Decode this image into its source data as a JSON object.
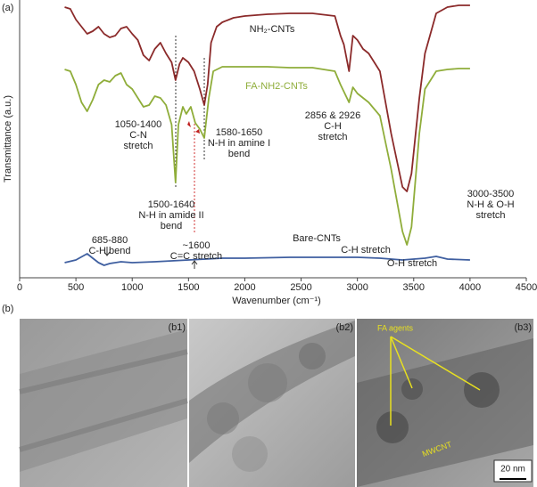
{
  "chart_data": {
    "type": "line",
    "panel_labels": [
      "(a)",
      "(b)"
    ],
    "xlabel": "Wavenumber (cm⁻¹)",
    "ylabel": "Transmittance (a.u.)",
    "xlim": [
      0,
      4500
    ],
    "xticks": [
      0,
      500,
      1000,
      1500,
      2000,
      2500,
      3000,
      3500,
      4000,
      4500
    ],
    "ylim": [
      0,
      312
    ],
    "series": [
      {
        "name": "NH₂-CNTs",
        "color": "#8b2a2a",
        "x": [
          400,
          450,
          500,
          550,
          600,
          650,
          700,
          750,
          800,
          850,
          900,
          950,
          1000,
          1050,
          1100,
          1150,
          1200,
          1250,
          1300,
          1350,
          1385,
          1420,
          1450,
          1500,
          1550,
          1600,
          1640,
          1670,
          1700,
          1750,
          1800,
          1900,
          2000,
          2200,
          2400,
          2600,
          2800,
          2850,
          2880,
          2926,
          2960,
          3000,
          3050,
          3100,
          3200,
          3300,
          3400,
          3440,
          3480,
          3550,
          3600,
          3700,
          3800,
          3900,
          4000
        ],
        "values": [
          304,
          302,
          290,
          282,
          274,
          277,
          282,
          274,
          270,
          272,
          280,
          282,
          274,
          267,
          250,
          244,
          257,
          264,
          252,
          242,
          222,
          240,
          247,
          242,
          232,
          212,
          194,
          217,
          264,
          282,
          287,
          292,
          294,
          296,
          297,
          297,
          294,
          272,
          262,
          232,
          272,
          267,
          257,
          252,
          232,
          162,
          102,
          97,
          117,
          202,
          252,
          297,
          304,
          306,
          306
        ]
      },
      {
        "name": "FA-NH2-CNTs",
        "color": "#8fad3a",
        "x": [
          400,
          450,
          500,
          550,
          600,
          650,
          700,
          750,
          800,
          850,
          900,
          950,
          1000,
          1050,
          1100,
          1150,
          1200,
          1250,
          1300,
          1350,
          1385,
          1410,
          1450,
          1480,
          1520,
          1560,
          1600,
          1640,
          1680,
          1720,
          1800,
          2000,
          2200,
          2400,
          2600,
          2800,
          2850,
          2926,
          2960,
          3000,
          3100,
          3200,
          3300,
          3400,
          3440,
          3480,
          3550,
          3600,
          3700,
          3800,
          3900,
          4000
        ],
        "values": [
          234,
          232,
          217,
          197,
          187,
          200,
          217,
          222,
          220,
          227,
          230,
          217,
          212,
          202,
          192,
          194,
          204,
          202,
          194,
          172,
          107,
          172,
          192,
          184,
          192,
          174,
          167,
          157,
          202,
          232,
          237,
          237,
          237,
          236,
          236,
          232,
          217,
          197,
          214,
          207,
          197,
          182,
          122,
          52,
          37,
          57,
          162,
          212,
          232,
          234,
          235,
          235
        ]
      },
      {
        "name": "Bare-CNTs",
        "color": "#3f5fa0",
        "x": [
          400,
          500,
          600,
          650,
          700,
          750,
          800,
          900,
          1000,
          1200,
          1500,
          1800,
          2000,
          2400,
          2800,
          3000,
          3200,
          3400,
          3600,
          3700,
          3800,
          4000
        ],
        "values": [
          17,
          20,
          27,
          22,
          17,
          14,
          16,
          18,
          17,
          18,
          20,
          22,
          22,
          23,
          23,
          23,
          22,
          20,
          22,
          24,
          21,
          20
        ]
      }
    ],
    "annotations": [
      [
        "1050-1400",
        "C-N",
        "stretch"
      ],
      [
        "1580-1650",
        "N-H in amine I",
        "bend"
      ],
      [
        "2856 & 2926",
        "C-H",
        "stretch"
      ],
      [
        "1500-1640",
        "N-H in amide II",
        "bend"
      ],
      [
        "3000-3500",
        "N-H & O-H",
        "stretch"
      ],
      [
        "685-880",
        "C-H bend"
      ],
      [
        "~1600",
        "C=C stretch"
      ],
      [
        "C-H stretch"
      ],
      [
        "O-H stretch"
      ]
    ],
    "images": [
      {
        "label": "(b1)"
      },
      {
        "label": "(b2)"
      },
      {
        "label": "(b3)",
        "annotations": [
          "FA agents",
          "MWCNT"
        ],
        "scale_bar": "20 nm"
      }
    ]
  }
}
